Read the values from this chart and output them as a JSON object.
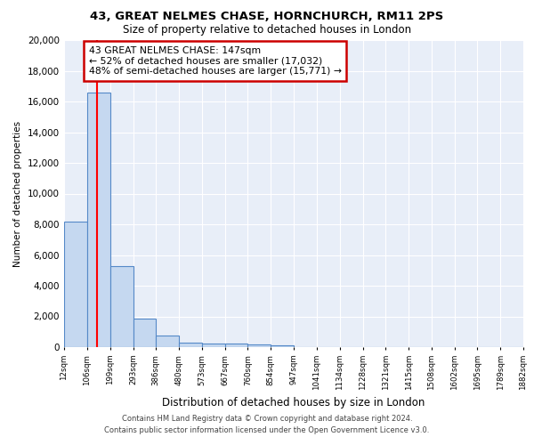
{
  "title1": "43, GREAT NELMES CHASE, HORNCHURCH, RM11 2PS",
  "title2": "Size of property relative to detached houses in London",
  "xlabel": "Distribution of detached houses by size in London",
  "ylabel": "Number of detached properties",
  "bin_edges": [
    12,
    106,
    199,
    293,
    386,
    480,
    573,
    667,
    760,
    854,
    947,
    1041,
    1134,
    1228,
    1321,
    1415,
    1508,
    1602,
    1695,
    1789,
    1882
  ],
  "bar_heights": [
    8150,
    16600,
    5300,
    1850,
    730,
    310,
    235,
    220,
    180,
    130,
    0,
    0,
    0,
    0,
    0,
    0,
    0,
    0,
    0,
    0
  ],
  "bar_color": "#c5d8f0",
  "bar_edge_color": "#5589c8",
  "red_line_x": 147,
  "annotation_text": "43 GREAT NELMES CHASE: 147sqm\n← 52% of detached houses are smaller (17,032)\n48% of semi-detached houses are larger (15,771) →",
  "annotation_box_color": "#ffffff",
  "annotation_box_edge": "#cc0000",
  "footer": "Contains HM Land Registry data © Crown copyright and database right 2024.\nContains public sector information licensed under the Open Government Licence v3.0.",
  "bg_color": "#e8eef8",
  "ylim": [
    0,
    20000
  ],
  "yticks": [
    0,
    2000,
    4000,
    6000,
    8000,
    10000,
    12000,
    14000,
    16000,
    18000,
    20000
  ]
}
